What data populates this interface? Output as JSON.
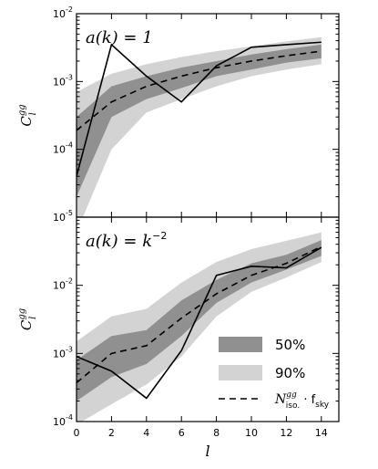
{
  "chart_data": [
    {
      "type": "line",
      "panel": "top",
      "annotation": "a(k) = 1",
      "annotation_parts": {
        "lhs": "a",
        "arg": "(k)",
        "eq": " = ",
        "rhs": "1",
        "sup": ""
      },
      "ylabel_main": "C",
      "ylabel_sub": "l",
      "ylabel_sup": "gg",
      "yscale": "log",
      "xlim": [
        0,
        15
      ],
      "ylim": [
        1e-05,
        0.01
      ],
      "ytick_values": [
        1e-05,
        0.0001,
        0.001,
        0.01
      ],
      "ytick_labels": [
        {
          "base": "10",
          "exp": "-5"
        },
        {
          "base": "10",
          "exp": "-4"
        },
        {
          "base": "10",
          "exp": "-3"
        },
        {
          "base": "10",
          "exp": "-2"
        }
      ],
      "x": [
        0,
        2,
        4,
        6,
        8,
        10,
        12,
        14
      ],
      "series": [
        {
          "role": "observed",
          "values": [
            4e-05,
            0.0035,
            0.0012,
            0.0005,
            0.0017,
            0.0032,
            0.0035,
            0.0038
          ]
        },
        {
          "role": "noise",
          "values": [
            0.00019,
            0.0005,
            0.00085,
            0.0012,
            0.0016,
            0.002,
            0.0024,
            0.0028
          ]
        }
      ],
      "band_x": [
        0,
        2,
        4,
        6,
        8,
        10,
        12,
        14
      ],
      "band90": {
        "low": [
          6e-06,
          0.0001,
          0.00035,
          0.00055,
          0.00085,
          0.0012,
          0.0015,
          0.0018
        ],
        "high": [
          0.0007,
          0.0013,
          0.0018,
          0.0023,
          0.0028,
          0.0033,
          0.0039,
          0.0045
        ]
      },
      "band50": {
        "low": [
          2e-05,
          0.0003,
          0.00055,
          0.0008,
          0.0012,
          0.0015,
          0.0019,
          0.0022
        ],
        "high": [
          0.0003,
          0.00085,
          0.0012,
          0.0016,
          0.002,
          0.0025,
          0.003,
          0.0035
        ]
      }
    },
    {
      "type": "line",
      "panel": "bottom",
      "annotation": "a(k) = k^-2",
      "annotation_parts": {
        "lhs": "a",
        "arg": "(k)",
        "eq": " = ",
        "rhs": "k",
        "sup": "−2"
      },
      "ylabel_main": "C",
      "ylabel_sub": "l",
      "ylabel_sup": "gg",
      "yscale": "log",
      "xlim": [
        0,
        15
      ],
      "ylim": [
        0.0001,
        0.1
      ],
      "ytick_values": [
        0.0001,
        0.001,
        0.01
      ],
      "ytick_labels": [
        {
          "base": "10",
          "exp": "-4"
        },
        {
          "base": "10",
          "exp": "-3"
        },
        {
          "base": "10",
          "exp": "-2"
        }
      ],
      "xlabel": "l",
      "xticks": [
        0,
        2,
        4,
        6,
        8,
        10,
        12,
        14
      ],
      "x": [
        0,
        2,
        4,
        6,
        8,
        10,
        12,
        14
      ],
      "series": [
        {
          "role": "observed",
          "values": [
            0.0009,
            0.00055,
            0.00022,
            0.0011,
            0.014,
            0.019,
            0.018,
            0.036
          ]
        },
        {
          "role": "noise",
          "values": [
            0.00037,
            0.001,
            0.0013,
            0.0033,
            0.0075,
            0.014,
            0.021,
            0.037
          ]
        }
      ],
      "band_x": [
        0,
        2,
        4,
        6,
        8,
        10,
        12,
        14
      ],
      "band90": {
        "low": [
          9e-05,
          0.00018,
          0.00035,
          0.0009,
          0.0035,
          0.008,
          0.013,
          0.022
        ],
        "high": [
          0.0015,
          0.0035,
          0.0045,
          0.011,
          0.022,
          0.034,
          0.045,
          0.06
        ]
      },
      "band50": {
        "low": [
          0.0002,
          0.00045,
          0.0007,
          0.0018,
          0.0055,
          0.011,
          0.017,
          0.027
        ],
        "high": [
          0.0008,
          0.0018,
          0.0022,
          0.006,
          0.012,
          0.021,
          0.028,
          0.046
        ]
      }
    }
  ],
  "legend": {
    "placement": "lower-right",
    "items": [
      {
        "label": "50%",
        "kind": "patch",
        "color": "#909090"
      },
      {
        "label": "90%",
        "kind": "patch",
        "color": "#d3d3d3"
      },
      {
        "label_main": "N",
        "label_sup": "gg",
        "label_sub": "iso.",
        "label_mid": " · f",
        "label_sub2": "sky",
        "kind": "dashed-line",
        "color": "#000000"
      }
    ]
  },
  "colors": {
    "band90": "#d3d3d3",
    "band50": "#909090",
    "observed": "#000000",
    "noise": "#000000"
  }
}
